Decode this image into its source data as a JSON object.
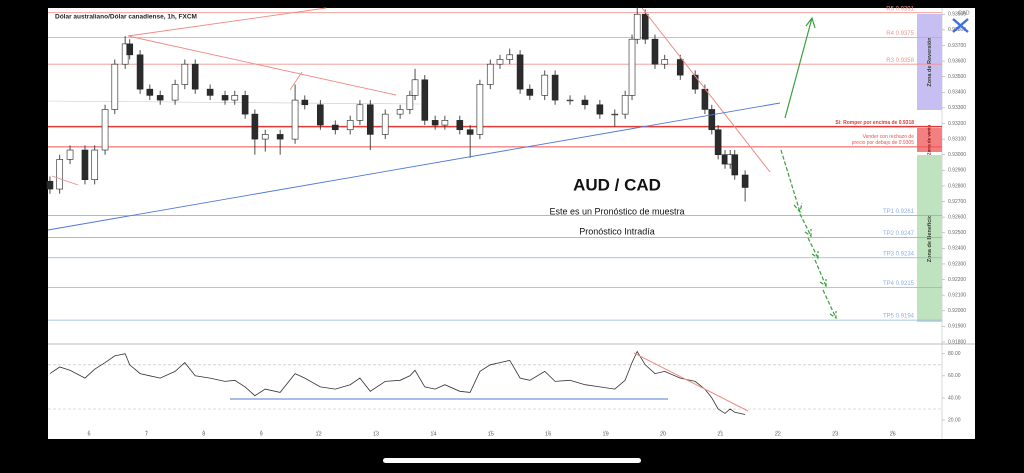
{
  "chart_data": {
    "type": "candlestick",
    "title": "Dólar australiano/Dólar canadiense, 1h, FXCM",
    "currency": "CAD",
    "heading": "AUD / CAD",
    "subtitle": "Este es un Pronóstico de muestra",
    "note": "Pronóstico Intradía",
    "x": [
      -0.68,
      -0.51,
      -0.33,
      -0.07,
      0.1,
      0.28,
      0.45,
      0.63,
      0.71,
      0.89,
      1.06,
      1.24,
      1.5,
      1.67,
      1.85,
      2.11,
      2.37,
      2.54,
      2.72,
      2.89,
      3.07,
      3.33,
      3.59,
      3.76,
      4.03,
      4.29,
      4.55,
      4.72,
      4.9,
      5.16,
      5.42,
      5.59,
      5.68,
      5.85,
      6.03,
      6.2,
      6.46,
      6.64,
      6.81,
      6.99,
      7.16,
      7.33,
      7.51,
      7.68,
      7.94,
      8.12,
      8.38,
      8.64,
      8.9,
      9.16,
      9.34,
      9.46,
      9.55,
      9.69,
      9.86,
      10.03,
      10.3,
      10.56,
      10.73,
      10.85,
      10.96,
      11.08,
      11.17,
      11.25,
      11.43
    ],
    "open": [
      0.9283,
      0.9278,
      0.9297,
      0.9303,
      0.9284,
      0.9303,
      0.9329,
      0.9358,
      0.9371,
      0.9364,
      0.9342,
      0.9338,
      0.9335,
      0.9345,
      0.9358,
      0.9342,
      0.9338,
      0.9335,
      0.9338,
      0.9326,
      0.931,
      0.9313,
      0.931,
      0.9335,
      0.9332,
      0.9319,
      0.9316,
      0.9322,
      0.9332,
      0.9313,
      0.9326,
      0.9329,
      0.9338,
      0.9348,
      0.9322,
      0.9319,
      0.9322,
      0.9316,
      0.9313,
      0.9345,
      0.9358,
      0.9361,
      0.9364,
      0.9342,
      0.9338,
      0.9351,
      0.9335,
      0.9335,
      0.9332,
      0.9326,
      0.9326,
      0.9338,
      0.9374,
      0.939,
      0.9374,
      0.9358,
      0.9361,
      0.9351,
      0.9342,
      0.9329,
      0.9316,
      0.93,
      0.9294,
      0.93,
      0.9287
    ],
    "high": [
      0.9286,
      0.93,
      0.9306,
      0.9306,
      0.9306,
      0.9332,
      0.9361,
      0.9376,
      0.9374,
      0.9367,
      0.9345,
      0.9341,
      0.9348,
      0.9361,
      0.9361,
      0.9345,
      0.9341,
      0.9341,
      0.9341,
      0.9329,
      0.9316,
      0.9316,
      0.9345,
      0.9338,
      0.9335,
      0.9322,
      0.9325,
      0.9335,
      0.9335,
      0.9329,
      0.9332,
      0.9341,
      0.9355,
      0.9351,
      0.9325,
      0.9325,
      0.9325,
      0.9319,
      0.9348,
      0.9361,
      0.9364,
      0.9368,
      0.9367,
      0.9345,
      0.9354,
      0.9354,
      0.9338,
      0.9338,
      0.9335,
      0.9329,
      0.9341,
      0.9377,
      0.9395,
      0.9393,
      0.9377,
      0.9364,
      0.9364,
      0.9354,
      0.9345,
      0.9332,
      0.9319,
      0.9303,
      0.9303,
      0.9303,
      0.929
    ],
    "low": [
      0.9275,
      0.9275,
      0.9294,
      0.9281,
      0.9281,
      0.93,
      0.9326,
      0.9355,
      0.9361,
      0.9339,
      0.9335,
      0.9332,
      0.9332,
      0.9342,
      0.9339,
      0.9335,
      0.9332,
      0.9332,
      0.9323,
      0.93,
      0.9302,
      0.93,
      0.9307,
      0.9329,
      0.9316,
      0.9313,
      0.9313,
      0.9319,
      0.9303,
      0.931,
      0.9323,
      0.9326,
      0.9335,
      0.9319,
      0.9316,
      0.9316,
      0.9313,
      0.9298,
      0.931,
      0.9342,
      0.9355,
      0.9358,
      0.9339,
      0.9335,
      0.9335,
      0.9332,
      0.9332,
      0.9329,
      0.9323,
      0.9318,
      0.9323,
      0.9335,
      0.9371,
      0.9371,
      0.9355,
      0.9355,
      0.9348,
      0.9339,
      0.9326,
      0.9313,
      0.9297,
      0.9291,
      0.9291,
      0.9284,
      0.927
    ],
    "close": [
      0.9278,
      0.9297,
      0.9303,
      0.9284,
      0.9303,
      0.9329,
      0.9358,
      0.9371,
      0.9364,
      0.9342,
      0.9338,
      0.9335,
      0.9345,
      0.9358,
      0.9342,
      0.9338,
      0.9335,
      0.9338,
      0.9326,
      0.931,
      0.9313,
      0.931,
      0.9335,
      0.9332,
      0.9319,
      0.9316,
      0.9322,
      0.9332,
      0.9313,
      0.9326,
      0.9329,
      0.9338,
      0.9348,
      0.9322,
      0.9319,
      0.9322,
      0.9316,
      0.9313,
      0.9345,
      0.9358,
      0.9361,
      0.9364,
      0.9342,
      0.9338,
      0.9351,
      0.9335,
      0.9335,
      0.9332,
      0.9326,
      0.9326,
      0.9338,
      0.9374,
      0.939,
      0.9374,
      0.9358,
      0.9361,
      0.9351,
      0.9342,
      0.9329,
      0.9316,
      0.93,
      0.9294,
      0.93,
      0.9287,
      0.9279
    ],
    "up_color": "#ffffff",
    "down_color": "#2b2b2b",
    "xlim": [
      -0.714,
      14.86
    ],
    "xticks": [
      {
        "value": 0,
        "label": "6"
      },
      {
        "value": 1,
        "label": "7"
      },
      {
        "value": 2,
        "label": "8"
      },
      {
        "value": 3,
        "label": "9"
      },
      {
        "value": 4,
        "label": "12"
      },
      {
        "value": 5,
        "label": "13"
      },
      {
        "value": 6,
        "label": "14"
      },
      {
        "value": 7,
        "label": "15"
      },
      {
        "value": 8,
        "label": "16"
      },
      {
        "value": 9,
        "label": "19"
      },
      {
        "value": 10,
        "label": "20"
      },
      {
        "value": 11,
        "label": "21"
      },
      {
        "value": 12,
        "label": "22"
      },
      {
        "value": 13,
        "label": "23"
      },
      {
        "value": 14,
        "label": "26"
      }
    ],
    "ylim": [
      0.918,
      0.9394
    ],
    "yticks": [
      {
        "value": 0.918,
        "label": "0.91800"
      },
      {
        "value": 0.919,
        "label": "0.91900"
      },
      {
        "value": 0.92,
        "label": "0.92000"
      },
      {
        "value": 0.921,
        "label": "0.92100"
      },
      {
        "value": 0.922,
        "label": "0.92200"
      },
      {
        "value": 0.923,
        "label": "0.92300"
      },
      {
        "value": 0.924,
        "label": "0.92400"
      },
      {
        "value": 0.925,
        "label": "0.92500"
      },
      {
        "value": 0.926,
        "label": "0.92600"
      },
      {
        "value": 0.927,
        "label": "0.92700"
      },
      {
        "value": 0.928,
        "label": "0.92800"
      },
      {
        "value": 0.929,
        "label": "0.92900"
      },
      {
        "value": 0.93,
        "label": "0.93000"
      },
      {
        "value": 0.931,
        "label": "0.93100"
      },
      {
        "value": 0.932,
        "label": "0.93200"
      },
      {
        "value": 0.933,
        "label": "0.93300"
      },
      {
        "value": 0.934,
        "label": "0.93400"
      },
      {
        "value": 0.935,
        "label": "0.93500"
      },
      {
        "value": 0.936,
        "label": "0.93600"
      },
      {
        "value": 0.937,
        "label": "0.93700"
      },
      {
        "value": 0.938,
        "label": "0.93800"
      },
      {
        "value": 0.939,
        "label": "0.93900"
      }
    ],
    "levels": [
      {
        "label": "R5 0.9391",
        "value": 0.9391,
        "color": "#f0958f"
      },
      {
        "label": "R4 0.9375",
        "value": 0.9375,
        "color": "#f0958f"
      },
      {
        "label": "R3 0.9358",
        "value": 0.9358,
        "color": "#f0958f"
      },
      {
        "label": "TP1 0.9261",
        "value": 0.9261,
        "color": "#8fb0e6"
      },
      {
        "label": "TP2 0.9247",
        "value": 0.9247,
        "color": "#8fb0e6"
      },
      {
        "label": "TP3 0.9234",
        "value": 0.9234,
        "color": "#8fb0e6"
      },
      {
        "label": "TP4 0.9215",
        "value": 0.9215,
        "color": "#8fb0e6"
      },
      {
        "label": "TP5 0.9194",
        "value": 0.9194,
        "color": "#8fb0e6"
      }
    ],
    "key_levels": [
      {
        "label_lines": [
          "Si: Romper por encima de 0.9318"
        ],
        "value": 0.9318,
        "color": "#e53935"
      },
      {
        "label_lines": [
          "Vender con rechazo de",
          "precio por debajo de 0.9305"
        ],
        "value": 0.9305,
        "color": "#ef5350"
      }
    ],
    "zones": [
      {
        "label": "Zona de Reversión",
        "color": "#c7bff2"
      },
      {
        "label": "Zona de venta",
        "color": "#f28080"
      },
      {
        "label": "Zona de Beneficio",
        "color": "#bfe3bf"
      }
    ],
    "oscillator": {
      "type": "line",
      "color": "#333333",
      "values": [
        62,
        68,
        65,
        58,
        66,
        72,
        78,
        80,
        70,
        62,
        60,
        58,
        64,
        72,
        60,
        58,
        55,
        56,
        50,
        42,
        48,
        45,
        62,
        58,
        50,
        48,
        52,
        58,
        46,
        55,
        56,
        60,
        65,
        50,
        48,
        52,
        46,
        45,
        64,
        70,
        72,
        74,
        58,
        56,
        64,
        55,
        56,
        52,
        50,
        48,
        56,
        72,
        82,
        70,
        62,
        64,
        58,
        55,
        48,
        40,
        30,
        26,
        30,
        27,
        25
      ],
      "ylim": [
        11,
        87
      ],
      "yticks": [
        {
          "value": 20,
          "label": "20.00"
        },
        {
          "value": 40,
          "label": "40.00"
        },
        {
          "value": 60,
          "label": "60.00"
        },
        {
          "value": 80,
          "label": "80.00"
        }
      ],
      "guides": [
        70,
        30
      ]
    }
  }
}
